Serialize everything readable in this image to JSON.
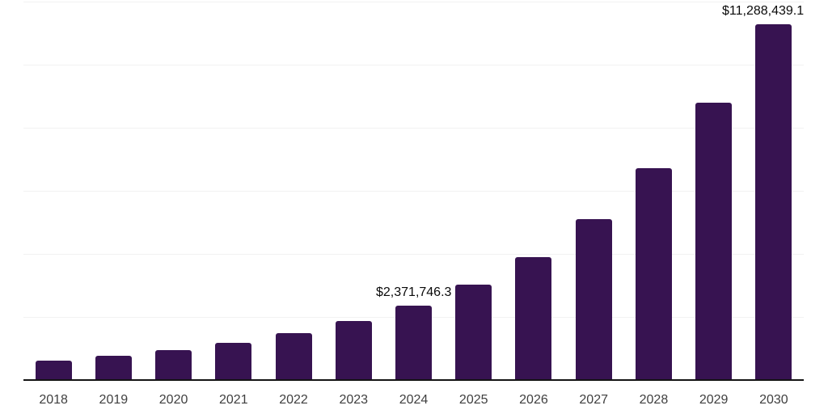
{
  "chart_data": {
    "type": "bar",
    "title": "",
    "xlabel": "",
    "ylabel": "",
    "categories": [
      "2018",
      "2019",
      "2020",
      "2021",
      "2022",
      "2023",
      "2024",
      "2025",
      "2026",
      "2027",
      "2028",
      "2029",
      "2030"
    ],
    "values": [
      625000,
      760000,
      950000,
      1185000,
      1480000,
      1865000,
      2371746.3,
      3030000,
      3910000,
      5105000,
      6710000,
      8790000,
      11288439.1
    ],
    "value_labels": {
      "2024": "$2,371,746.3",
      "2030": "$11,288,439.1"
    },
    "ylim": [
      0,
      12000000
    ],
    "gridline_step": 2000000,
    "grid": true,
    "y_axis_tick_labels_visible": false,
    "legend": "none",
    "colors": {
      "bar": "#371351",
      "axis_line": "#141414",
      "gridline": "#f2f2f2",
      "value_label": "#0a0a0a",
      "tick_label": "#3f3f3f",
      "background": "#ffffff"
    }
  }
}
